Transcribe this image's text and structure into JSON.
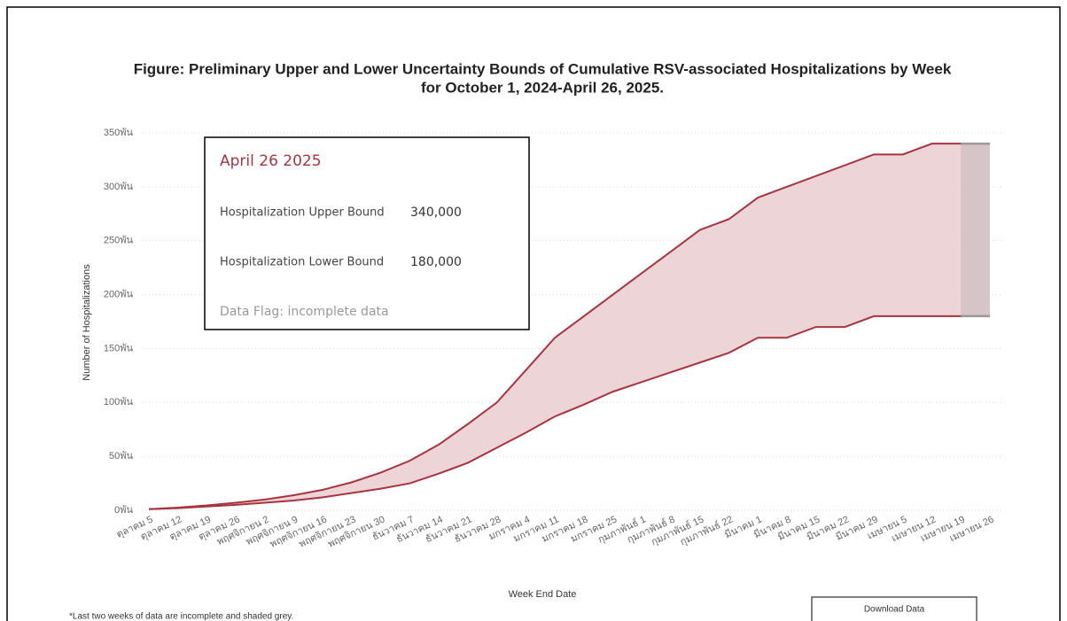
{
  "chart_data": {
    "type": "band",
    "title": "Figure: Preliminary Upper and Lower Uncertainty Bounds of Cumulative RSV-associated Hospitalizations by Week",
    "subtitle": "for October 1, 2024-April 26, 2025.",
    "x_label": "Week End Date",
    "y_label": "Number of Hospitalizations",
    "categories": [
      "ตุลาคม 5",
      "ตุลาคม 12",
      "ตุลาคม 19",
      "ตุลาคม 26",
      "พฤศจิกายน 2",
      "พฤศจิกายน 9",
      "พฤศจิกายน 16",
      "พฤศจิกายน 23",
      "พฤศจิกายน 30",
      "ธันวาคม 7",
      "ธันวาคม 14",
      "ธันวาคม 21",
      "ธันวาคม 28",
      "มกราคม 4",
      "มกราคม 11",
      "มกราคม 18",
      "มกราคม 25",
      "กุมภาพันธ์ 1",
      "กุมภาพันธ์ 8",
      "กุมภาพันธ์ 15",
      "กุมภาพันธ์ 22",
      "มีนาคม 1",
      "มีนาคม 8",
      "มีนาคม 15",
      "มีนาคม 22",
      "มีนาคม 29",
      "เมษายน 5",
      "เมษายน 12",
      "เมษายน 19",
      "เมษายน 26"
    ],
    "series": [
      {
        "name": "Hospitalization Upper Bound",
        "color": "#a8343f",
        "values": [
          1000,
          2500,
          4500,
          7000,
          10000,
          14000,
          19000,
          26000,
          35000,
          46000,
          61000,
          80000,
          100000,
          130000,
          160000,
          180000,
          200000,
          220000,
          240000,
          260000,
          270000,
          290000,
          300000,
          310000,
          320000,
          330000,
          330000,
          340000,
          340000,
          340000
        ]
      },
      {
        "name": "Hospitalization Lower Bound",
        "color": "#a8343f",
        "values": [
          1000,
          2000,
          3500,
          5000,
          7000,
          9000,
          12000,
          16000,
          20000,
          25000,
          34000,
          44000,
          58000,
          72000,
          87000,
          98000,
          110000,
          119000,
          128000,
          137000,
          146000,
          160000,
          160000,
          170000,
          170000,
          180000,
          180000,
          180000,
          180000,
          180000
        ]
      }
    ],
    "band_color": "#e9cdd0",
    "incomplete_last_n": 2,
    "incomplete_color": "#d6c4c6",
    "ylim": [
      0,
      350000
    ],
    "yticks": [
      {
        "value": 0,
        "label": "0พัน"
      },
      {
        "value": 50000,
        "label": "50พัน"
      },
      {
        "value": 100000,
        "label": "100พัน"
      },
      {
        "value": 150000,
        "label": "150พัน"
      },
      {
        "value": 200000,
        "label": "200พัน"
      },
      {
        "value": 250000,
        "label": "250พัน"
      },
      {
        "value": 300000,
        "label": "300พัน"
      },
      {
        "value": 350000,
        "label": "350พัน"
      }
    ],
    "grid": true
  },
  "tooltip": {
    "date": "April 26 2025",
    "upper_label": "Hospitalization Upper Bound",
    "upper_value": "340,000",
    "lower_label": "Hospitalization Lower Bound",
    "lower_value": "180,000",
    "flag": "Data Flag: incomplete data"
  },
  "footnote": "*Last two weeks of data are incomplete and shaded grey.",
  "download_button": "Download Data"
}
